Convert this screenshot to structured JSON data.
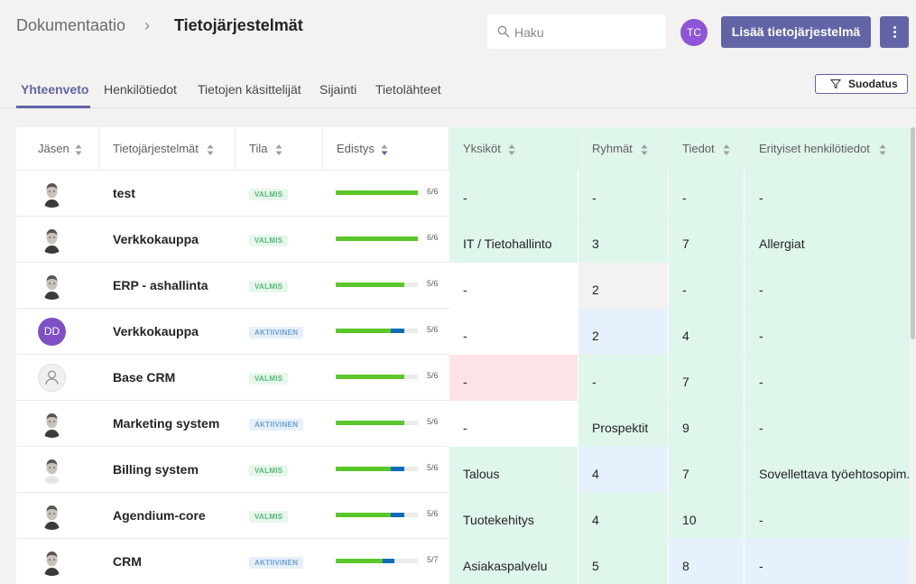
{
  "breadcrumb": {
    "root": "Dokumentaatio",
    "separator": "›",
    "current": "Tietojärjestelmät"
  },
  "search": {
    "placeholder": "Haku",
    "value": ""
  },
  "user_avatar": "TC",
  "add_button": "Lisää tietojärjestelmä",
  "more_button_icon": "more-vertical-icon",
  "tabs": [
    "Yhteenveto",
    "Henkilötiedot",
    "Tietojen käsittelijät",
    "Sijainti",
    "Tietolähteet"
  ],
  "active_tab": 0,
  "filter_button": "Suodatus",
  "columns": [
    "Jäsen",
    "Tietojärjestelmät",
    "Tila",
    "Edistys",
    "Yksiköt",
    "Ryhmät",
    "Tiedot",
    "Erityiset henkilötiedot"
  ],
  "colors": {
    "accent": "#6264a7",
    "green_bg": "#dff6ea",
    "blue_bg": "#e7f1fd",
    "pink_bg": "#fde3e7",
    "gray_bg": "#f3f2f1",
    "progress_green": "#5bc72a",
    "progress_blue": "#0f6cbd"
  },
  "rows": [
    {
      "avatar": "photo",
      "name": "test",
      "status": "VALMIS",
      "progress": "6/6",
      "progress_done": 1.0,
      "progress_active": 0.0,
      "units": "-",
      "groups": "-",
      "data": "-",
      "special": "-",
      "bg": [
        "green",
        "green",
        "green",
        "green"
      ]
    },
    {
      "avatar": "photo",
      "name": "Verkkokauppa",
      "status": "VALMIS",
      "progress": "6/6",
      "progress_done": 1.0,
      "progress_active": 0.0,
      "units": "IT / Tietohallinto",
      "groups": "3",
      "data": "7",
      "special": "Allergiat",
      "bg": [
        "green",
        "green",
        "green",
        "green"
      ]
    },
    {
      "avatar": "photo",
      "name": "ERP - ashallinta",
      "status": "VALMIS",
      "progress": "5/6",
      "progress_done": 0.83,
      "progress_active": 0.0,
      "units": "-",
      "groups": "2",
      "data": "-",
      "special": "-",
      "bg": [
        "white",
        "gray",
        "green",
        "green"
      ]
    },
    {
      "avatar": "DD",
      "name": "Verkkokauppa",
      "status": "AKTIIVINEN",
      "progress": "5/6",
      "progress_done": 0.83,
      "progress_active": 0.17,
      "units": "-",
      "groups": "2",
      "data": "4",
      "special": "-",
      "bg": [
        "white",
        "blue",
        "green",
        "green"
      ]
    },
    {
      "avatar": "placeholder",
      "name": "Base CRM",
      "status": "VALMIS",
      "progress": "5/6",
      "progress_done": 0.83,
      "progress_active": 0.0,
      "units": "-",
      "groups": "-",
      "data": "7",
      "special": "-",
      "bg": [
        "pink",
        "green",
        "green",
        "green"
      ]
    },
    {
      "avatar": "photo",
      "name": "Marketing system",
      "status": "AKTIIVINEN",
      "progress": "5/6",
      "progress_done": 0.83,
      "progress_active": 0.0,
      "units": "-",
      "groups": "Prospektit",
      "data": "9",
      "special": "-",
      "bg": [
        "white",
        "green",
        "green",
        "green"
      ]
    },
    {
      "avatar": "photo2",
      "name": "Billing system",
      "status": "VALMIS",
      "progress": "5/6",
      "progress_done": 0.83,
      "progress_active": 0.17,
      "units": "Talous",
      "groups": "4",
      "data": "7",
      "special": "Sovellettava työehtosopim.",
      "bg": [
        "green",
        "blue",
        "green",
        "green"
      ]
    },
    {
      "avatar": "photo",
      "name": "Agendium-core",
      "status": "VALMIS",
      "progress": "5/6",
      "progress_done": 0.83,
      "progress_active": 0.17,
      "units": "Tuotekehitys",
      "groups": "4",
      "data": "10",
      "special": "-",
      "bg": [
        "green",
        "green",
        "green",
        "green"
      ]
    },
    {
      "avatar": "photo",
      "name": "CRM",
      "status": "AKTIIVINEN",
      "progress": "5/7",
      "progress_done": 0.71,
      "progress_active": 0.14,
      "units": "Asiakaspalvelu",
      "groups": "5",
      "data": "8",
      "special": "-",
      "bg": [
        "green",
        "green",
        "blue",
        "blue"
      ]
    }
  ]
}
